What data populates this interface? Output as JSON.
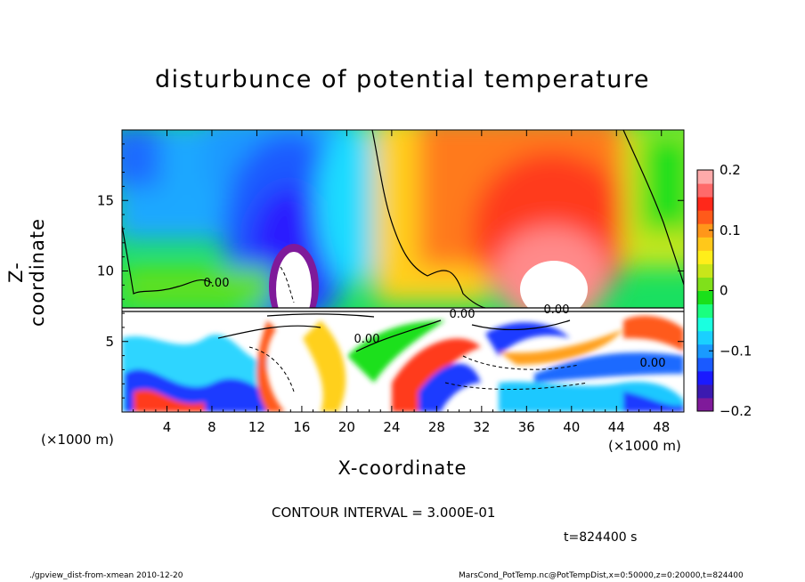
{
  "chart_data": {
    "type": "heatmap",
    "title": "disturbunce of potential temperature",
    "xlabel": "X-coordinate",
    "ylabel": "Z-coordinate",
    "x_unit_label": "(×1000 m)",
    "x_ticks": [
      4,
      8,
      12,
      16,
      20,
      24,
      28,
      32,
      36,
      40,
      44,
      48
    ],
    "y_ticks": [
      5,
      10,
      15
    ],
    "xlim": [
      0,
      50
    ],
    "ylim": [
      0,
      20
    ],
    "colorbar": {
      "range": [
        -0.2,
        0.2
      ],
      "labels": [
        "0.2",
        "0.1",
        "0",
        "−0.1",
        "−0.2"
      ],
      "colors": [
        "#7f1a9a",
        "#3b1ab0",
        "#1a1aff",
        "#1a5aff",
        "#1a9aff",
        "#1ad0ff",
        "#1affe0",
        "#1aff80",
        "#1ae01a",
        "#80e01a",
        "#c8e61a",
        "#ffee1a",
        "#ffc81a",
        "#ff961a",
        "#ff5a1a",
        "#ff281a",
        "#ff6a6a",
        "#ffaaaa"
      ]
    },
    "contour_labels": [
      "0.00",
      "0.00",
      "0.00",
      "0.00",
      "0.00"
    ],
    "contour_interval": "CONTOUR INTERVAL = 3.000E-01",
    "time": "t=824400 s"
  },
  "footer": {
    "left": "./gpview_dist-from-xmean  2010-12-20",
    "right": "MarsCond_PotTemp.nc@PotTempDist,x=0:50000,z=0:20000,t=824400"
  }
}
